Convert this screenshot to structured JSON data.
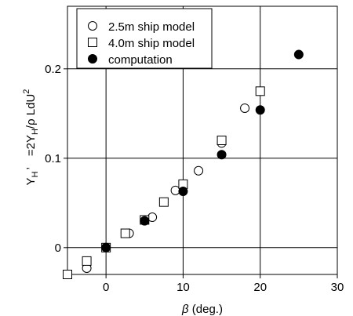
{
  "chart_data": {
    "type": "scatter",
    "xlabel": {
      "symbol": "β",
      "text": " (deg.)"
    },
    "ylabel": {
      "main": "Y",
      "sub": "H",
      "prime": "’",
      "rest": "=2Y",
      "sub2": "H",
      "rest2": "/ρ LdU",
      "sup": "2"
    },
    "xlim": [
      -5,
      30
    ],
    "ylim": [
      -0.03,
      0.27
    ],
    "xticks": [
      "0",
      "10",
      "20",
      "30"
    ],
    "yticks": [
      "0",
      "0.1",
      "0.2"
    ],
    "grid": true,
    "legend_position": "top-left",
    "series": [
      {
        "name": "2.5m ship model",
        "marker": "open-circle",
        "x": [
          -2.5,
          0,
          3,
          6,
          9,
          12,
          15,
          18
        ],
        "y": [
          -0.023,
          0.0,
          0.016,
          0.034,
          0.064,
          0.086,
          0.117,
          0.156
        ]
      },
      {
        "name": "4.0m ship model",
        "marker": "open-square",
        "x": [
          -5,
          -2.5,
          0,
          2.5,
          5,
          7.5,
          10,
          15,
          20
        ],
        "y": [
          -0.03,
          -0.015,
          0.0,
          0.016,
          0.031,
          0.051,
          0.071,
          0.12,
          0.175
        ]
      },
      {
        "name": "computation",
        "marker": "filled-circle",
        "x": [
          0,
          5,
          10,
          15,
          20,
          25
        ],
        "y": [
          0.0,
          0.03,
          0.063,
          0.104,
          0.154,
          0.216
        ]
      }
    ]
  }
}
